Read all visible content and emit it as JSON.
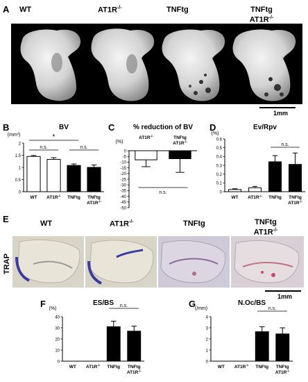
{
  "panel_letters": {
    "A": "A",
    "B": "B",
    "C": "C",
    "D": "D",
    "E": "E",
    "F": "F",
    "G": "G"
  },
  "panel_a": {
    "labels": [
      "WT",
      "AT1R",
      "TNFtg",
      "TNFtg"
    ],
    "label_sup": [
      "",
      "-/-",
      "",
      ""
    ],
    "label_line2": [
      "",
      "",
      "",
      "AT1R"
    ],
    "label_line2_sup": [
      "",
      "",
      "",
      "-/-"
    ],
    "scale_bar": "1mm"
  },
  "panel_e": {
    "labels": [
      "WT",
      "AT1R",
      "TNFtg",
      "TNFtg"
    ],
    "label_sup": [
      "",
      "-/-",
      "",
      ""
    ],
    "label_line2": [
      "",
      "",
      "",
      "AT1R"
    ],
    "label_line2_sup": [
      "",
      "",
      "",
      "-/-"
    ],
    "side_label": "TRAP",
    "scale_bar": "1mm"
  },
  "chart_data": [
    {
      "id": "B",
      "type": "bar",
      "title": "BV",
      "ylabel": "(mm³)",
      "categories": [
        "WT",
        "AT1R-/-",
        "TNFtg",
        "TNFtg AT1R-/-"
      ],
      "values": [
        1.45,
        1.33,
        1.08,
        1.0
      ],
      "errors": [
        0.04,
        0.07,
        0.06,
        0.1
      ],
      "fill": [
        "#ffffff",
        "#ffffff",
        "#000000",
        "#000000"
      ],
      "ylim": [
        0,
        2
      ],
      "yticks": [
        0,
        0.5,
        1,
        1.5,
        2
      ],
      "ytick_labels": [
        "0",
        "0.5",
        "1",
        "1.5",
        "2"
      ],
      "brackets": [
        {
          "from": 0,
          "to": 1,
          "label": "n.s."
        },
        {
          "from": 2,
          "to": 3,
          "label": "n.s."
        },
        {
          "from": 0,
          "to": 2,
          "label": "*"
        }
      ]
    },
    {
      "id": "C",
      "type": "bar",
      "title": "% reduction of BV",
      "ylabel": "(%)",
      "categories": [
        "AT1R-/-",
        "TNFtg AT1R-/-"
      ],
      "values": [
        -8,
        -7
      ],
      "errors": [
        6,
        12
      ],
      "fill": [
        "#ffffff",
        "#000000"
      ],
      "ylim": [
        -50,
        0
      ],
      "yticks": [
        0,
        -5,
        -10,
        -15,
        -20,
        -25,
        -30,
        -35,
        -40,
        -45,
        -50
      ],
      "ytick_labels": [
        "0",
        "-5",
        "-10",
        "-15",
        "-20",
        "-25",
        "-30",
        "-35",
        "-40",
        "-45",
        "-50"
      ],
      "brackets": [
        {
          "from": 0,
          "to": 1,
          "label": "n.s."
        }
      ]
    },
    {
      "id": "D",
      "type": "bar",
      "title": "Ev/Rpv",
      "ylabel": "(%)",
      "categories": [
        "WT",
        "AT1R-/-",
        "TNFtg",
        "TNFtg AT1R-/-"
      ],
      "values": [
        0.025,
        0.045,
        0.34,
        0.31
      ],
      "errors": [
        0.008,
        0.015,
        0.07,
        0.13
      ],
      "fill": [
        "#ffffff",
        "#ffffff",
        "#000000",
        "#000000"
      ],
      "ylim": [
        0,
        0.6
      ],
      "yticks": [
        0,
        0.1,
        0.2,
        0.3,
        0.4,
        0.5,
        0.6
      ],
      "ytick_labels": [
        "0",
        "0.1",
        "0.2",
        "0.3",
        "0.4",
        "0.5",
        "0.6"
      ],
      "brackets": [
        {
          "from": 2,
          "to": 3,
          "label": "n.s."
        }
      ]
    },
    {
      "id": "F",
      "type": "bar",
      "title": "ES/BS",
      "ylabel": "(%)",
      "categories": [
        "WT",
        "AT1R-/-",
        "TNFtg",
        "TNFtg AT1R-/-"
      ],
      "values": [
        0,
        0,
        31,
        27
      ],
      "errors": [
        0,
        0,
        5,
        4.5
      ],
      "fill": [
        "#000000",
        "#000000",
        "#000000",
        "#000000"
      ],
      "ylim": [
        0,
        40
      ],
      "yticks": [
        0,
        10,
        20,
        30,
        40
      ],
      "ytick_labels": [
        "0",
        "10",
        "20",
        "30",
        "40"
      ],
      "brackets": [
        {
          "from": 2,
          "to": 3,
          "label": "n.s."
        }
      ]
    },
    {
      "id": "G",
      "type": "bar",
      "title": "N.Oc/BS",
      "ylabel": "(/mm)",
      "categories": [
        "WT",
        "AT1R-/-",
        "TNFtg",
        "TNFtg AT1R-/-"
      ],
      "values": [
        0,
        0,
        2.65,
        2.45
      ],
      "errors": [
        0,
        0,
        0.45,
        0.55
      ],
      "fill": [
        "#000000",
        "#000000",
        "#000000",
        "#000000"
      ],
      "ylim": [
        0,
        4
      ],
      "yticks": [
        0,
        1,
        2,
        3,
        4
      ],
      "ytick_labels": [
        "0",
        "1",
        "2",
        "3",
        "4"
      ],
      "brackets": [
        {
          "from": 2,
          "to": 3,
          "label": "n.s."
        }
      ]
    }
  ]
}
